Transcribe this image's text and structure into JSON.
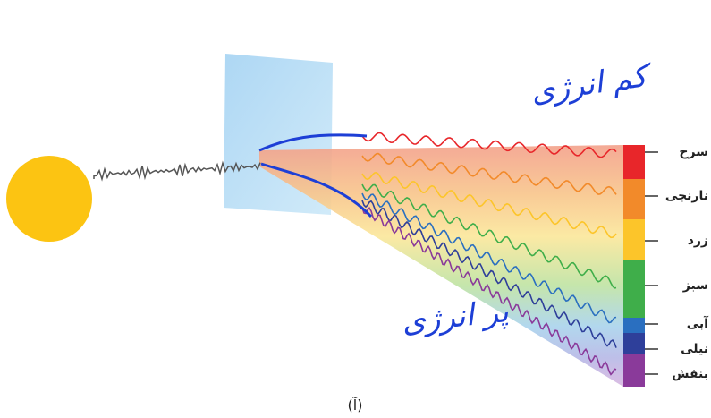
{
  "annotations": {
    "low_energy": "کم انرژی",
    "high_energy": "پر انرژی"
  },
  "spectrum": {
    "colors": [
      "سرخ",
      "نارنجی",
      "زرد",
      "سبز",
      "آبی",
      "نیلی",
      "بنفش"
    ]
  },
  "caption": "(آ)"
}
